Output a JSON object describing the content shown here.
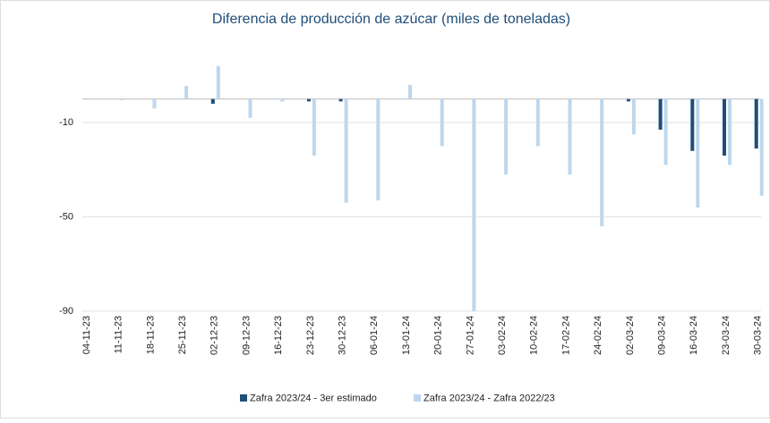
{
  "chart_data": {
    "type": "bar",
    "title": "Diferencia de producción de azúcar (miles de toneladas)",
    "categories": [
      "04-11-23",
      "11-11-23",
      "18-11-23",
      "25-11-23",
      "02-12-23",
      "09-12-23",
      "16-12-23",
      "23-12-23",
      "30-12-23",
      "06-01-24",
      "13-01-24",
      "20-01-24",
      "27-01-24",
      "03-02-24",
      "10-02-24",
      "17-02-24",
      "24-02-24",
      "02-03-24",
      "09-03-24",
      "16-03-24",
      "23-03-24",
      "30-03-24"
    ],
    "series": [
      {
        "name": "Zafra 2023/24 - 3er estimado",
        "color": "#1f4e79",
        "values": [
          0,
          0,
          0,
          0,
          -2,
          0,
          0,
          -1,
          -1,
          0,
          0,
          0,
          0,
          0,
          0,
          0,
          0,
          -1,
          -13,
          -22,
          -24,
          -21
        ]
      },
      {
        "name": "Zafra 2023/24 - Zafra 2022/23",
        "color": "#bdd7ee",
        "values": [
          0,
          -0.5,
          -4,
          5.5,
          14,
          -8,
          -1,
          -24,
          -44,
          -43,
          6,
          -20,
          -90,
          -32,
          -20,
          -32,
          -54,
          -15,
          -28,
          -46,
          -28,
          -41
        ]
      }
    ],
    "ylim": [
      -90,
      20
    ],
    "yticks": [
      -10,
      -50,
      -90
    ],
    "grid": true
  }
}
